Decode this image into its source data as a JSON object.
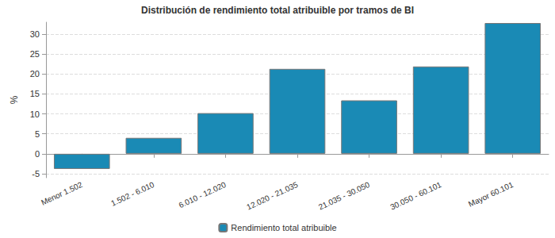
{
  "chart_data": {
    "type": "bar",
    "title": "Distribución de rendimiento total atribuible por tramos de BI",
    "ylabel": "%",
    "categories": [
      "Menor 1.502",
      "1.502 - 6.010",
      "6.010 - 12.020",
      "12.020 - 21.035",
      "21.035 - 30.050",
      "30.050 - 60.101",
      "Mayor 60.101"
    ],
    "series": [
      {
        "name": "Rendimiento total atribuible",
        "color": "#1a8ab5",
        "values": [
          -3.8,
          4.0,
          10.2,
          21.3,
          13.4,
          21.9,
          32.8
        ]
      }
    ],
    "ylim": [
      -6,
      33
    ],
    "yticks": [
      -5,
      0,
      5,
      10,
      15,
      20,
      25,
      30
    ],
    "grid": true,
    "legend": "bottom"
  }
}
